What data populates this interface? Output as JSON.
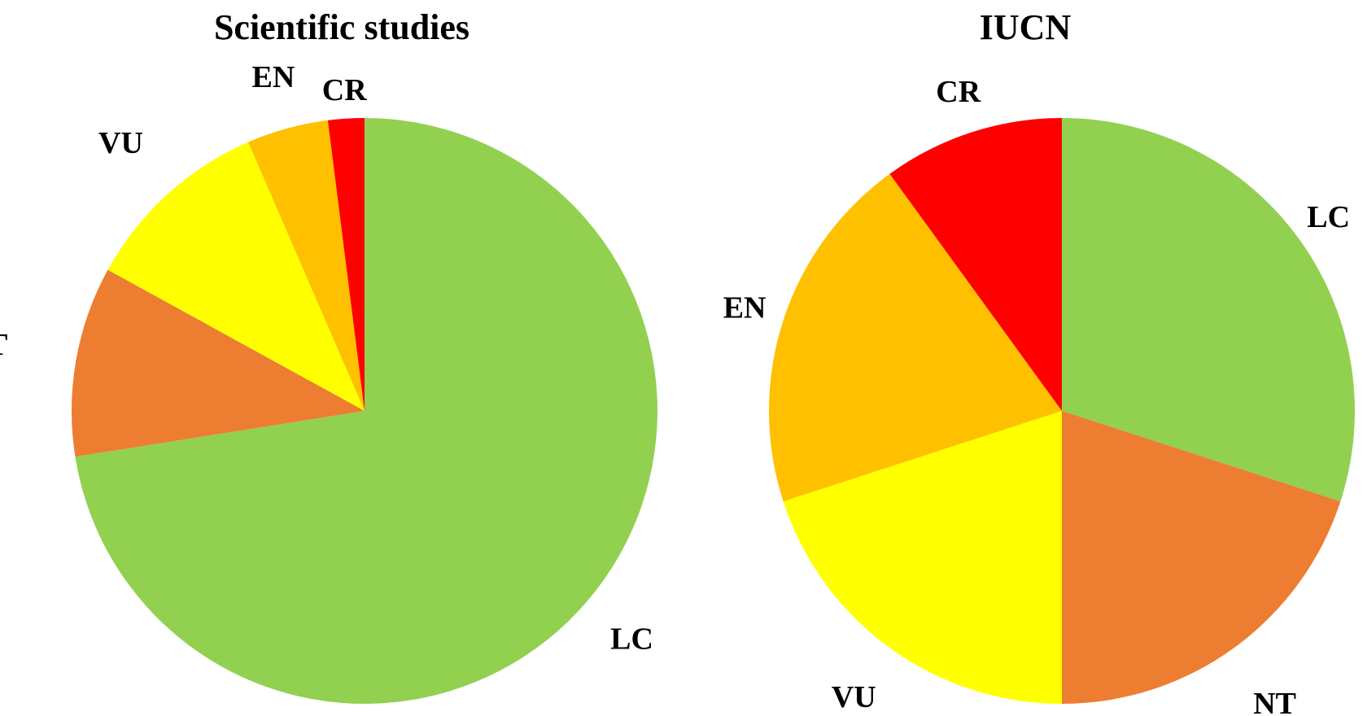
{
  "chart_data": [
    {
      "type": "pie",
      "title": "Scientific studies",
      "categories": [
        "LC",
        "NT",
        "VU",
        "EN",
        "CR"
      ],
      "values": [
        72.5,
        10.5,
        10.5,
        4.5,
        2.0
      ],
      "unit": "percent (estimated)",
      "colors": [
        "#92d050",
        "#ed7d31",
        "#ffff00",
        "#ffc000",
        "#ff0000"
      ],
      "start_angle": "12 o'clock",
      "direction": "clockwise",
      "legend": "none (category labels placed beside slices)"
    },
    {
      "type": "pie",
      "title": "IUCN",
      "categories": [
        "LC",
        "NT",
        "VU",
        "EN",
        "CR"
      ],
      "values": [
        30,
        20,
        20,
        20,
        10
      ],
      "unit": "percent (estimated)",
      "colors": [
        "#92d050",
        "#ed7d31",
        "#ffff00",
        "#ffc000",
        "#ff0000"
      ],
      "start_angle": "12 o'clock",
      "direction": "clockwise",
      "legend": "none (category labels placed beside slices)"
    }
  ]
}
